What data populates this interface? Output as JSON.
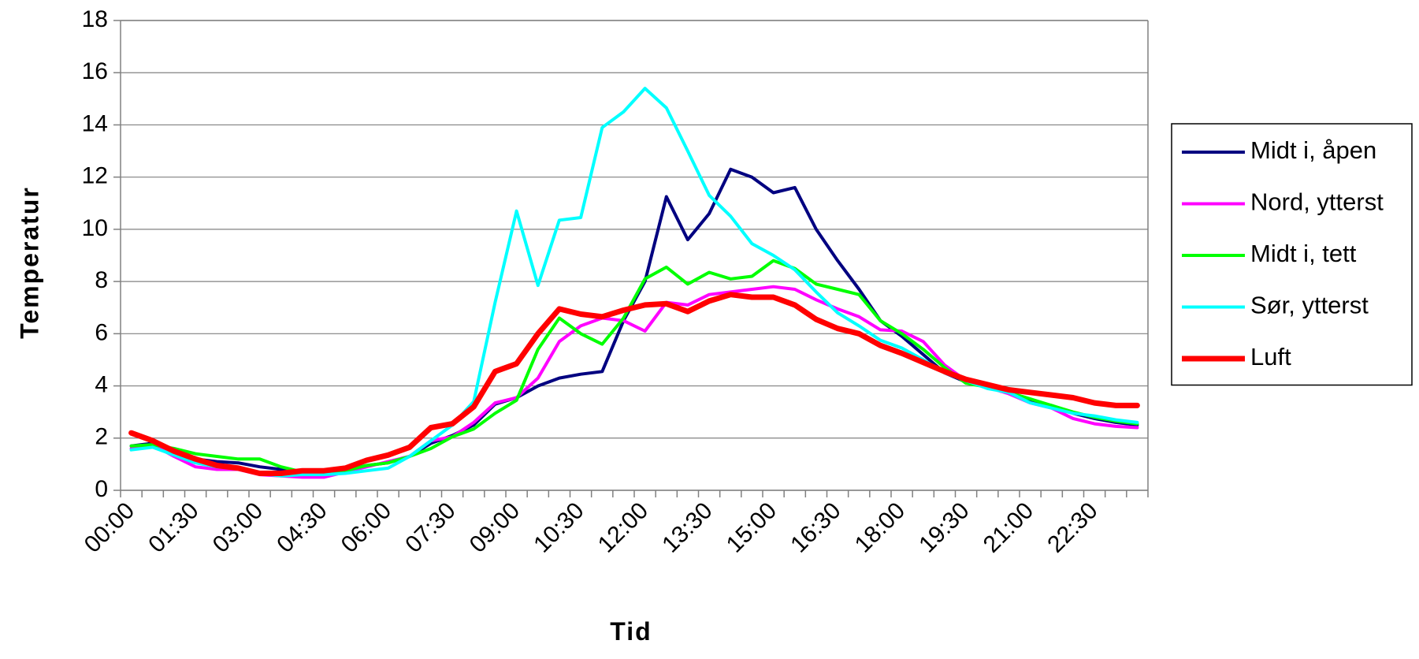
{
  "chart_data": {
    "type": "line",
    "x_label": "Tid",
    "y_label": "Temperatur",
    "categories": [
      "00:00",
      null,
      null,
      "01:30",
      null,
      null,
      "03:00",
      null,
      null,
      "04:30",
      null,
      null,
      "06:00",
      null,
      null,
      "07:30",
      null,
      null,
      "09:00",
      null,
      null,
      "10:30",
      null,
      null,
      "12:00",
      null,
      null,
      "13:30",
      null,
      null,
      "15:00",
      null,
      null,
      "16:30",
      null,
      null,
      "18:00",
      null,
      null,
      "19:30",
      null,
      null,
      "21:00",
      null,
      null,
      "22:30",
      null,
      null
    ],
    "series": [
      {
        "name": "Midt i, åpen",
        "color": "#000080",
        "line_width": 4,
        "values": [
          1.7,
          1.8,
          1.5,
          1.2,
          1.1,
          1.05,
          0.9,
          0.8,
          0.7,
          0.65,
          0.75,
          0.95,
          1.05,
          1.3,
          1.8,
          2.1,
          2.5,
          3.3,
          3.55,
          4.0,
          4.3,
          4.45,
          4.55,
          6.5,
          8.0,
          11.25,
          9.6,
          10.6,
          12.3,
          12.0,
          11.4,
          11.6,
          10.0,
          8.8,
          7.7,
          6.5,
          5.9,
          5.2,
          4.5,
          4.15,
          3.95,
          3.75,
          3.45,
          3.25,
          2.95,
          2.75,
          2.6,
          2.5
        ]
      },
      {
        "name": "Nord, ytterst",
        "color": "#ff00ff",
        "line_width": 4,
        "values": [
          1.6,
          1.75,
          1.3,
          0.9,
          0.8,
          0.8,
          0.6,
          0.55,
          0.5,
          0.5,
          0.7,
          0.9,
          1.1,
          1.3,
          1.9,
          2.05,
          2.6,
          3.35,
          3.55,
          4.3,
          5.7,
          6.3,
          6.6,
          6.5,
          6.1,
          7.2,
          7.1,
          7.5,
          7.6,
          7.7,
          7.8,
          7.7,
          7.3,
          6.95,
          6.65,
          6.15,
          6.1,
          5.7,
          4.8,
          4.2,
          3.95,
          3.7,
          3.35,
          3.15,
          2.75,
          2.55,
          2.45,
          2.4
        ]
      },
      {
        "name": "Midt i, tett",
        "color": "#00ff00",
        "line_width": 4,
        "values": [
          1.7,
          1.75,
          1.6,
          1.4,
          1.3,
          1.2,
          1.2,
          0.9,
          0.7,
          0.7,
          0.75,
          0.95,
          1.05,
          1.3,
          1.6,
          2.05,
          2.35,
          2.95,
          3.45,
          5.4,
          6.6,
          6.0,
          5.6,
          6.6,
          8.1,
          8.55,
          7.9,
          8.35,
          8.1,
          8.2,
          8.8,
          8.5,
          7.9,
          7.7,
          7.5,
          6.5,
          6.0,
          5.4,
          4.7,
          4.1,
          3.95,
          3.75,
          3.5,
          3.25,
          3.0,
          2.8,
          2.65,
          2.55
        ]
      },
      {
        "name": "Sør, ytterst",
        "color": "#00ffff",
        "line_width": 4,
        "values": [
          1.55,
          1.65,
          1.35,
          1.05,
          0.9,
          0.85,
          0.65,
          0.55,
          0.6,
          0.6,
          0.65,
          0.75,
          0.85,
          1.3,
          1.9,
          2.5,
          3.4,
          7.2,
          10.7,
          7.85,
          10.35,
          10.45,
          13.9,
          14.5,
          15.4,
          14.65,
          13.0,
          11.3,
          10.5,
          9.45,
          9.0,
          8.45,
          7.6,
          6.8,
          6.3,
          5.75,
          5.45,
          5.0,
          4.5,
          4.2,
          3.9,
          3.75,
          3.35,
          3.15,
          2.95,
          2.85,
          2.7,
          2.6
        ]
      },
      {
        "name": "Luft",
        "color": "#ff0000",
        "line_width": 7,
        "values": [
          2.2,
          1.9,
          1.5,
          1.2,
          0.95,
          0.85,
          0.65,
          0.65,
          0.75,
          0.75,
          0.85,
          1.15,
          1.35,
          1.65,
          2.4,
          2.55,
          3.2,
          4.55,
          4.85,
          6.0,
          6.95,
          6.75,
          6.65,
          6.9,
          7.1,
          7.15,
          6.85,
          7.25,
          7.5,
          7.4,
          7.4,
          7.1,
          6.55,
          6.2,
          6.0,
          5.55,
          5.25,
          4.9,
          4.55,
          4.25,
          4.05,
          3.85,
          3.75,
          3.65,
          3.55,
          3.35,
          3.25,
          3.25
        ]
      }
    ],
    "ylim": [
      0,
      18
    ],
    "yticks": [
      0,
      2,
      4,
      6,
      8,
      10,
      12,
      14,
      16,
      18
    ],
    "grid": true,
    "legend": "right"
  }
}
